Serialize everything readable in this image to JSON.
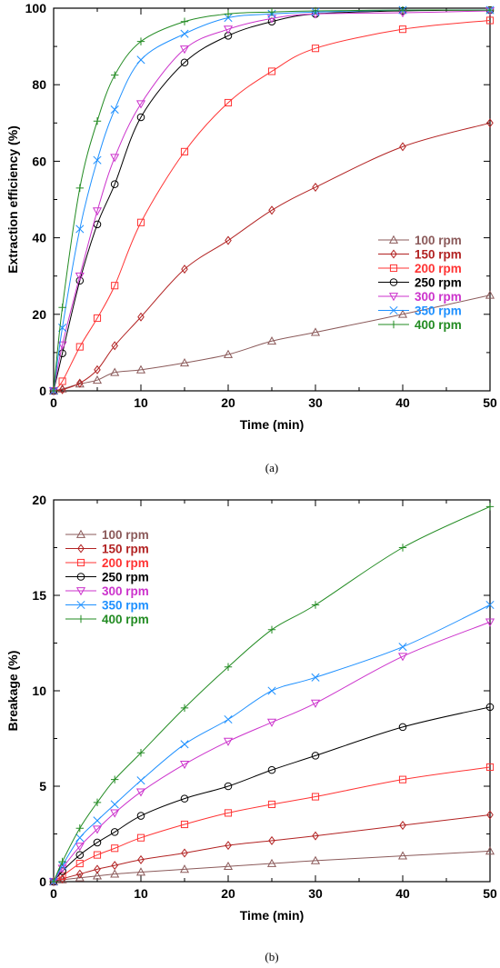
{
  "chart_data": [
    {
      "type": "line",
      "panel_label": "(a)",
      "xlabel": "Time (min)",
      "ylabel": "Extraction efficiency (%)",
      "xlim": [
        0,
        50
      ],
      "ylim": [
        0,
        100
      ],
      "xticks": [
        0,
        10,
        20,
        30,
        40,
        50
      ],
      "yticks": [
        0,
        20,
        40,
        60,
        80,
        100
      ],
      "grid": false,
      "legend_position": "right-middle",
      "x": [
        0,
        1,
        3,
        5,
        7,
        10,
        15,
        20,
        25,
        30,
        40,
        50
      ],
      "series": [
        {
          "name": "100 rpm",
          "color": "#8B5A5A",
          "marker": "triangle-up",
          "values": [
            0,
            0.5,
            1.8,
            2.8,
            4.8,
            5.5,
            7.3,
            9.5,
            13.0,
            15.3,
            20.0,
            25.0
          ]
        },
        {
          "name": "150 rpm",
          "color": "#B22222",
          "marker": "diamond",
          "values": [
            0,
            0.3,
            2.0,
            5.5,
            11.8,
            19.3,
            31.8,
            39.3,
            47.2,
            53.2,
            63.8,
            70.0
          ]
        },
        {
          "name": "200 rpm",
          "color": "#FF3333",
          "marker": "square",
          "values": [
            0,
            2.5,
            11.5,
            19.0,
            27.5,
            44.0,
            62.5,
            75.3,
            83.5,
            89.5,
            94.5,
            96.8
          ]
        },
        {
          "name": "250 rpm",
          "color": "#000000",
          "marker": "circle",
          "values": [
            0,
            9.8,
            28.8,
            43.5,
            54.0,
            71.5,
            85.8,
            92.8,
            96.5,
            98.5,
            99.3,
            99.5
          ]
        },
        {
          "name": "300 rpm",
          "color": "#CC33CC",
          "marker": "triangle-down",
          "values": [
            0,
            12.0,
            30.0,
            47.0,
            61.0,
            75.0,
            89.3,
            94.5,
            97.3,
            98.5,
            98.8,
            99.3
          ]
        },
        {
          "name": "350 rpm",
          "color": "#1E90FF",
          "marker": "x",
          "values": [
            0,
            16.5,
            42.3,
            60.3,
            73.5,
            86.5,
            93.3,
            97.5,
            98.5,
            99.0,
            99.5,
            99.5
          ]
        },
        {
          "name": "400 rpm",
          "color": "#228B22",
          "marker": "plus",
          "values": [
            0,
            21.8,
            53.0,
            70.5,
            82.5,
            91.3,
            96.5,
            98.5,
            99.0,
            99.3,
            99.5,
            99.5
          ]
        }
      ]
    },
    {
      "type": "line",
      "panel_label": "(b)",
      "xlabel": "Time (min)",
      "ylabel": "Breakage (%)",
      "xlim": [
        0,
        50
      ],
      "ylim": [
        0,
        20
      ],
      "xticks": [
        0,
        10,
        20,
        30,
        40,
        50
      ],
      "yticks": [
        0,
        5,
        10,
        15,
        20
      ],
      "grid": false,
      "legend_position": "top-left",
      "x": [
        0,
        1,
        3,
        5,
        7,
        10,
        15,
        20,
        25,
        30,
        40,
        50
      ],
      "series": [
        {
          "name": "100 rpm",
          "color": "#8B5A5A",
          "marker": "triangle-up",
          "values": [
            0,
            0.1,
            0.2,
            0.3,
            0.4,
            0.5,
            0.65,
            0.8,
            0.95,
            1.1,
            1.35,
            1.6
          ]
        },
        {
          "name": "150 rpm",
          "color": "#B22222",
          "marker": "diamond",
          "values": [
            0,
            0.15,
            0.4,
            0.65,
            0.85,
            1.15,
            1.5,
            1.9,
            2.15,
            2.4,
            2.95,
            3.5
          ]
        },
        {
          "name": "200 rpm",
          "color": "#FF3333",
          "marker": "square",
          "values": [
            0,
            0.3,
            0.95,
            1.4,
            1.75,
            2.3,
            3.0,
            3.6,
            4.05,
            4.45,
            5.35,
            6.0
          ]
        },
        {
          "name": "250 rpm",
          "color": "#000000",
          "marker": "circle",
          "values": [
            0,
            0.55,
            1.4,
            2.05,
            2.6,
            3.45,
            4.35,
            5.0,
            5.85,
            6.6,
            8.1,
            9.15
          ]
        },
        {
          "name": "300 rpm",
          "color": "#CC33CC",
          "marker": "triangle-down",
          "values": [
            0,
            0.7,
            1.85,
            2.75,
            3.6,
            4.7,
            6.15,
            7.35,
            8.35,
            9.35,
            11.8,
            13.6
          ]
        },
        {
          "name": "350 rpm",
          "color": "#1E90FF",
          "marker": "x",
          "values": [
            0,
            0.85,
            2.3,
            3.2,
            4.05,
            5.3,
            7.2,
            8.5,
            10.0,
            10.7,
            12.3,
            14.5
          ]
        },
        {
          "name": "400 rpm",
          "color": "#228B22",
          "marker": "plus",
          "values": [
            0,
            1.05,
            2.8,
            4.15,
            5.35,
            6.75,
            9.1,
            11.25,
            13.2,
            14.5,
            17.5,
            19.65
          ]
        }
      ]
    }
  ]
}
